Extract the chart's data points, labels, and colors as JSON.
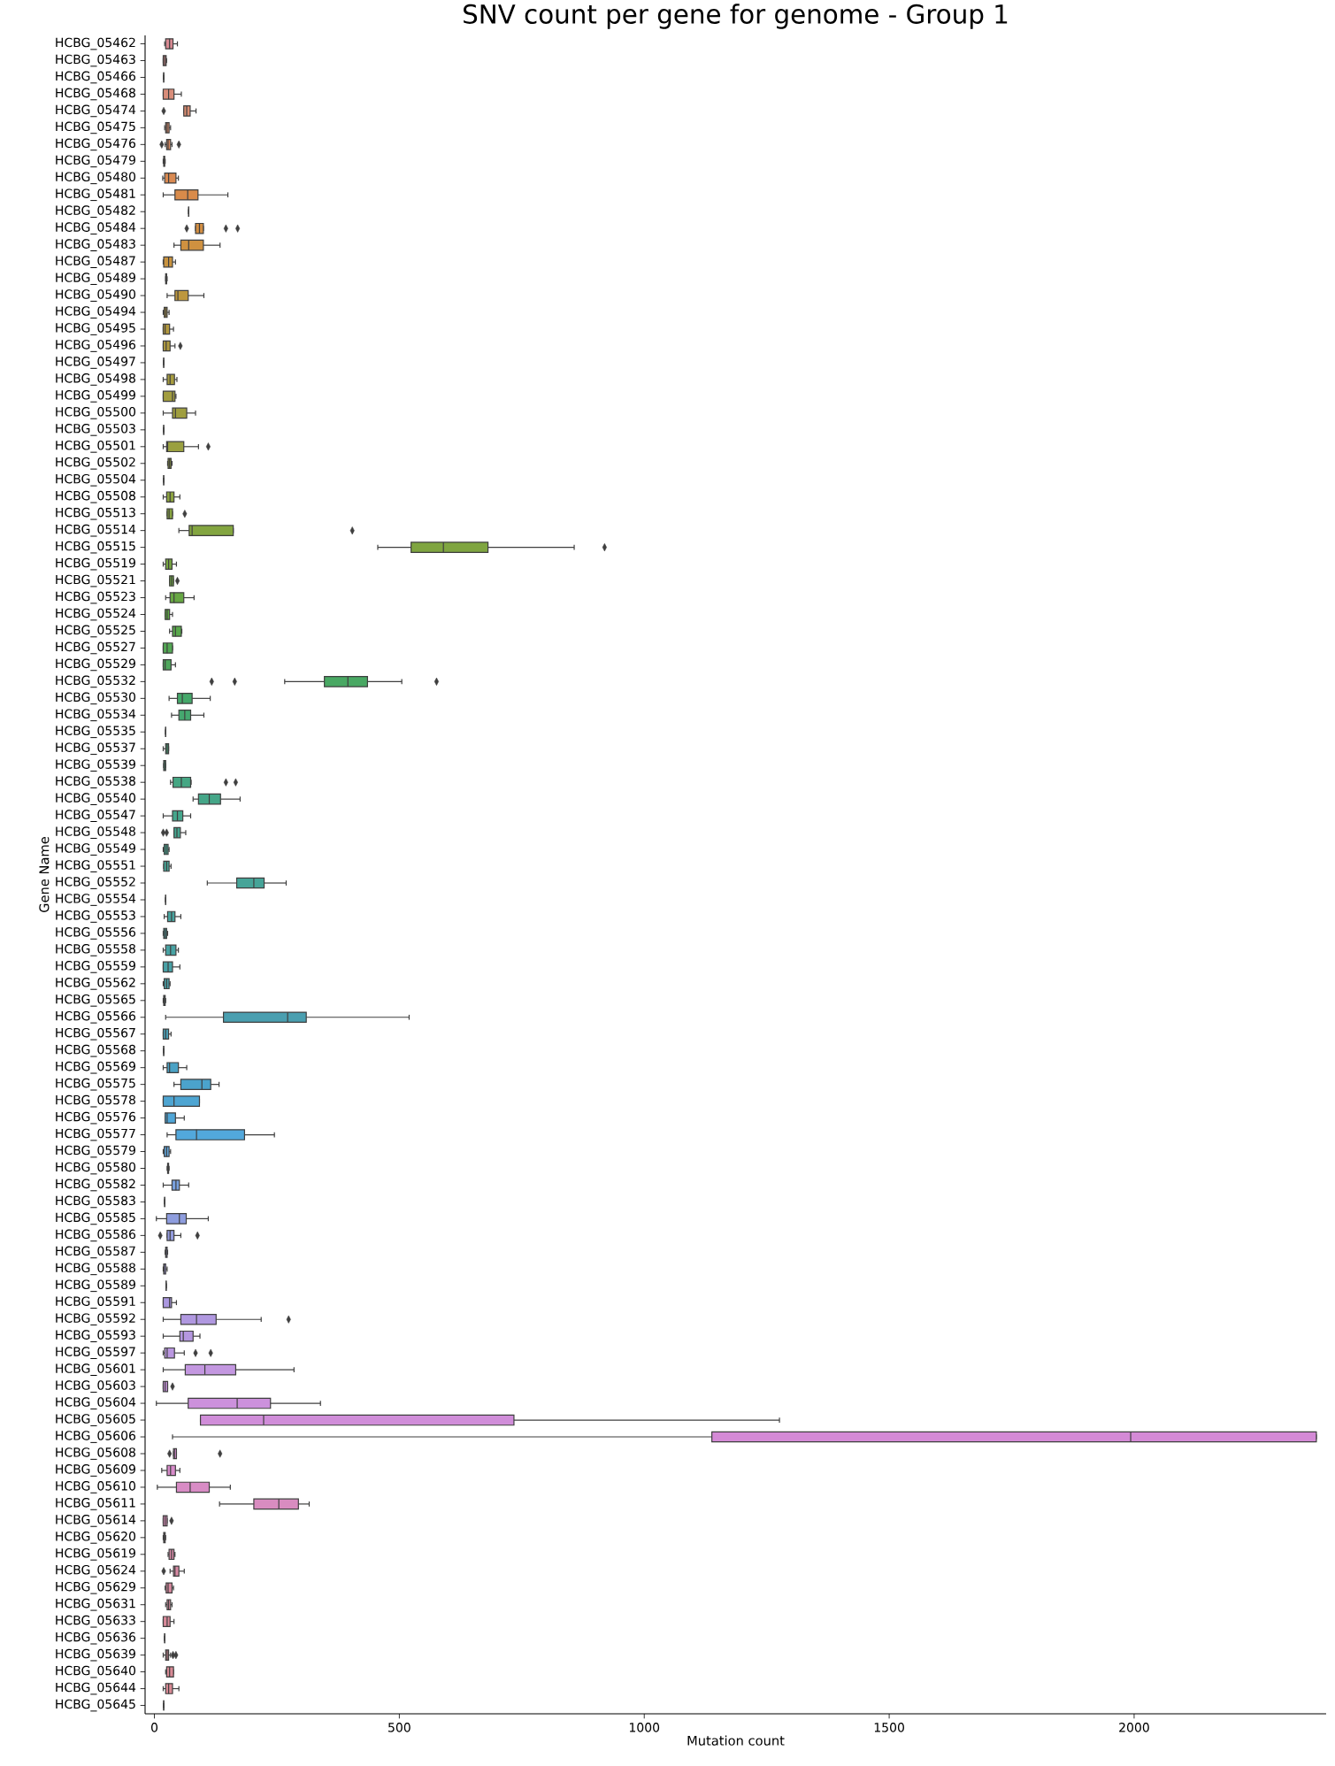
{
  "chart_data": {
    "type": "box",
    "orientation": "horizontal",
    "title": "SNV count per gene for genome - Group 1",
    "xlabel": "Mutation count",
    "ylabel": "Gene Name",
    "xlim": [
      -19,
      2392
    ],
    "xticks": [
      0,
      500,
      1000,
      1500,
      2000
    ],
    "categories": [
      "HCBG_05462",
      "HCBG_05463",
      "HCBG_05466",
      "HCBG_05468",
      "HCBG_05474",
      "HCBG_05475",
      "HCBG_05476",
      "HCBG_05479",
      "HCBG_05480",
      "HCBG_05481",
      "HCBG_05482",
      "HCBG_05484",
      "HCBG_05483",
      "HCBG_05487",
      "HCBG_05489",
      "HCBG_05490",
      "HCBG_05494",
      "HCBG_05495",
      "HCBG_05496",
      "HCBG_05497",
      "HCBG_05498",
      "HCBG_05499",
      "HCBG_05500",
      "HCBG_05503",
      "HCBG_05501",
      "HCBG_05502",
      "HCBG_05504",
      "HCBG_05508",
      "HCBG_05513",
      "HCBG_05514",
      "HCBG_05515",
      "HCBG_05519",
      "HCBG_05521",
      "HCBG_05523",
      "HCBG_05524",
      "HCBG_05525",
      "HCBG_05527",
      "HCBG_05529",
      "HCBG_05532",
      "HCBG_05530",
      "HCBG_05534",
      "HCBG_05535",
      "HCBG_05537",
      "HCBG_05539",
      "HCBG_05538",
      "HCBG_05540",
      "HCBG_05547",
      "HCBG_05548",
      "HCBG_05549",
      "HCBG_05551",
      "HCBG_05552",
      "HCBG_05554",
      "HCBG_05553",
      "HCBG_05556",
      "HCBG_05558",
      "HCBG_05559",
      "HCBG_05562",
      "HCBG_05565",
      "HCBG_05566",
      "HCBG_05567",
      "HCBG_05568",
      "HCBG_05569",
      "HCBG_05575",
      "HCBG_05578",
      "HCBG_05576",
      "HCBG_05577",
      "HCBG_05579",
      "HCBG_05580",
      "HCBG_05582",
      "HCBG_05583",
      "HCBG_05585",
      "HCBG_05586",
      "HCBG_05587",
      "HCBG_05588",
      "HCBG_05589",
      "HCBG_05591",
      "HCBG_05592",
      "HCBG_05593",
      "HCBG_05597",
      "HCBG_05601",
      "HCBG_05603",
      "HCBG_05604",
      "HCBG_05605",
      "HCBG_05606",
      "HCBG_05608",
      "HCBG_05609",
      "HCBG_05610",
      "HCBG_05611",
      "HCBG_05614",
      "HCBG_05620",
      "HCBG_05619",
      "HCBG_05624",
      "HCBG_05629",
      "HCBG_05631",
      "HCBG_05633",
      "HCBG_05636",
      "HCBG_05639",
      "HCBG_05640",
      "HCBG_05644",
      "HCBG_05645"
    ],
    "colors": [
      "#d98a93",
      "#d98b8a",
      "#3f3f3f",
      "#d98d7a",
      "#d98d72",
      "#d98c6a",
      "#d98b62",
      "#d98a5a",
      "#d98a52",
      "#d98b4a",
      "#3f3f3f",
      "#d38f43",
      "#cf9140",
      "#c9933e",
      "#c3953e",
      "#bd973e",
      "#b8983e",
      "#b3993e",
      "#b09a3e",
      "#3f3f3f",
      "#a69c3f",
      "#a29d3f",
      "#9f9e3f",
      "#3f3f3f",
      "#9aa040",
      "#95a140",
      "#3f3f3f",
      "#8ca340",
      "#87a440",
      "#83a540",
      "#7fa540",
      "#77a641",
      "#6fa742",
      "#67a743",
      "#5fa844",
      "#59a84c",
      "#53a854",
      "#4ea85c",
      "#49a863",
      "#45a86a",
      "#45a86f",
      "#3f3f3f",
      "#45a779",
      "#45a77e",
      "#45a683",
      "#45a688",
      "#45a68c",
      "#45a58f",
      "#45a591",
      "#46a495",
      "#46a498",
      "#3f3f3f",
      "#47a39e",
      "#47a2a0",
      "#47a2a3",
      "#48a1a6",
      "#48a1a9",
      "#49a0ac",
      "#4a9fb0",
      "#4aa0b7",
      "#3f3f3f",
      "#4ba2c5",
      "#4ba3cc",
      "#4ea5d2",
      "#50a6d7",
      "#52a8dc",
      "#5fa5dd",
      "#6ca3dd",
      "#79a1de",
      "#3f3f3f",
      "#8e9dde",
      "#949cde",
      "#9a9bdf",
      "#a09adf",
      "#3f3f3f",
      "#ab98e0",
      "#b098e0",
      "#b597e0",
      "#ba97e0",
      "#c397e0",
      "#c894de",
      "#cc91dc",
      "#d08dd9",
      "#d48ad6",
      "#d68bd0",
      "#d78bca",
      "#d88cc5",
      "#d98cc0",
      "#d98cb8",
      "#d98bb1",
      "#d98aa8",
      "#d98aa4",
      "#d98aa0",
      "#d98a9d",
      "#d98a9a",
      "#3f3f3f",
      "#d98a97",
      "#d98a96",
      "#d98a95",
      "#3f3f3f"
    ],
    "boxes": [
      {
        "low": 21,
        "q1": 23,
        "median": 31,
        "q3": 38,
        "high": 47
      },
      {
        "low": 18,
        "q1": 18,
        "median": 21,
        "q3": 24,
        "high": 25
      },
      {
        "low": 19,
        "q1": 19,
        "median": 19,
        "q3": 19,
        "high": 19
      },
      {
        "low": 18,
        "q1": 18,
        "median": 29,
        "q3": 40,
        "high": 55
      },
      {
        "low": 60,
        "q1": 60,
        "median": 66,
        "q3": 73,
        "high": 85,
        "outliers": [
          19
        ]
      },
      {
        "low": 21,
        "q1": 23,
        "median": 26,
        "q3": 30,
        "high": 33
      },
      {
        "low": 22,
        "q1": 25,
        "median": 28,
        "q3": 33,
        "high": 36,
        "outliers": [
          15,
          50
        ]
      },
      {
        "low": 18,
        "q1": 19,
        "median": 20,
        "q3": 21,
        "high": 22
      },
      {
        "low": 17,
        "q1": 21,
        "median": 29,
        "q3": 44,
        "high": 49
      },
      {
        "low": 18,
        "q1": 42,
        "median": 68,
        "q3": 89,
        "high": 150
      },
      {
        "low": 70,
        "q1": 70,
        "median": 70,
        "q3": 70,
        "high": 70
      },
      {
        "low": 84,
        "q1": 84,
        "median": 92,
        "q3": 100,
        "high": 100,
        "outliers": [
          66,
          146,
          170
        ]
      },
      {
        "low": 40,
        "q1": 54,
        "median": 70,
        "q3": 100,
        "high": 134
      },
      {
        "low": 18,
        "q1": 19,
        "median": 29,
        "q3": 37,
        "high": 43
      },
      {
        "low": 23,
        "q1": 23,
        "median": 24,
        "q3": 25,
        "high": 26
      },
      {
        "low": 26,
        "q1": 42,
        "median": 48,
        "q3": 69,
        "high": 101
      },
      {
        "low": 18,
        "q1": 20,
        "median": 23,
        "q3": 26,
        "high": 30
      },
      {
        "low": 18,
        "q1": 18,
        "median": 22,
        "q3": 31,
        "high": 39
      },
      {
        "low": 18,
        "q1": 18,
        "median": 24,
        "q3": 32,
        "high": 42,
        "outliers": [
          53
        ]
      },
      {
        "low": 19,
        "q1": 19,
        "median": 19,
        "q3": 19,
        "high": 19
      },
      {
        "low": 18,
        "q1": 26,
        "median": 32,
        "q3": 41,
        "high": 46
      },
      {
        "low": 18,
        "q1": 18,
        "median": 37,
        "q3": 42,
        "high": 44
      },
      {
        "low": 18,
        "q1": 37,
        "median": 43,
        "q3": 66,
        "high": 84
      },
      {
        "low": 19,
        "q1": 19,
        "median": 19,
        "q3": 19,
        "high": 19
      },
      {
        "low": 18,
        "q1": 25,
        "median": 27,
        "q3": 60,
        "high": 90,
        "outliers": [
          110
        ]
      },
      {
        "low": 27,
        "q1": 28,
        "median": 31,
        "q3": 34,
        "high": 36
      },
      {
        "low": 19,
        "q1": 19,
        "median": 19,
        "q3": 19,
        "high": 19
      },
      {
        "low": 18,
        "q1": 25,
        "median": 32,
        "q3": 40,
        "high": 52
      },
      {
        "low": 26,
        "q1": 26,
        "median": 30,
        "q3": 37,
        "high": 37,
        "outliers": [
          62
        ]
      },
      {
        "low": 50,
        "q1": 71,
        "median": 77,
        "q3": 161,
        "high": 161,
        "outliers": [
          404
        ]
      },
      {
        "low": 456,
        "q1": 524,
        "median": 590,
        "q3": 681,
        "high": 857,
        "outliers": [
          919
        ]
      },
      {
        "low": 18,
        "q1": 23,
        "median": 29,
        "q3": 36,
        "high": 45
      },
      {
        "low": 31,
        "q1": 31,
        "median": 35,
        "q3": 39,
        "high": 39,
        "outliers": [
          47
        ]
      },
      {
        "low": 23,
        "q1": 32,
        "median": 40,
        "q3": 60,
        "high": 81
      },
      {
        "low": 22,
        "q1": 22,
        "median": 26,
        "q3": 31,
        "high": 37
      },
      {
        "low": 31,
        "q1": 37,
        "median": 43,
        "q3": 55,
        "high": 56
      },
      {
        "low": 18,
        "q1": 18,
        "median": 26,
        "q3": 37,
        "high": 37
      },
      {
        "low": 18,
        "q1": 18,
        "median": 22,
        "q3": 34,
        "high": 43
      },
      {
        "low": 266,
        "q1": 347,
        "median": 395,
        "q3": 435,
        "high": 505,
        "outliers": [
          117,
          164,
          576
        ]
      },
      {
        "low": 30,
        "q1": 47,
        "median": 57,
        "q3": 77,
        "high": 114
      },
      {
        "low": 35,
        "q1": 50,
        "median": 62,
        "q3": 74,
        "high": 101
      },
      {
        "low": 23,
        "q1": 23,
        "median": 23,
        "q3": 23,
        "high": 23
      },
      {
        "low": 18,
        "q1": 23,
        "median": 26,
        "q3": 29,
        "high": 29
      },
      {
        "low": 19,
        "q1": 19,
        "median": 21,
        "q3": 23,
        "high": 23
      },
      {
        "low": 33,
        "q1": 38,
        "median": 55,
        "q3": 74,
        "high": 75,
        "outliers": [
          146,
          166
        ]
      },
      {
        "low": 79,
        "q1": 90,
        "median": 112,
        "q3": 135,
        "high": 175
      },
      {
        "low": 18,
        "q1": 37,
        "median": 47,
        "q3": 58,
        "high": 74
      },
      {
        "low": 40,
        "q1": 40,
        "median": 46,
        "q3": 53,
        "high": 64,
        "outliers": [
          18,
          25
        ]
      },
      {
        "low": 18,
        "q1": 20,
        "median": 24,
        "q3": 28,
        "high": 30
      },
      {
        "low": 19,
        "q1": 19,
        "median": 25,
        "q3": 30,
        "high": 34
      },
      {
        "low": 108,
        "q1": 168,
        "median": 203,
        "q3": 224,
        "high": 269
      },
      {
        "low": 23,
        "q1": 23,
        "median": 23,
        "q3": 23,
        "high": 23
      },
      {
        "low": 20,
        "q1": 27,
        "median": 35,
        "q3": 42,
        "high": 54
      },
      {
        "low": 18,
        "q1": 19,
        "median": 22,
        "q3": 25,
        "high": 27
      },
      {
        "low": 18,
        "q1": 23,
        "median": 33,
        "q3": 44,
        "high": 49
      },
      {
        "low": 18,
        "q1": 18,
        "median": 28,
        "q3": 37,
        "high": 52
      },
      {
        "low": 18,
        "q1": 20,
        "median": 25,
        "q3": 30,
        "high": 32
      },
      {
        "low": 18,
        "q1": 19,
        "median": 20,
        "q3": 22,
        "high": 23
      },
      {
        "low": 23,
        "q1": 141,
        "median": 272,
        "q3": 310,
        "high": 520
      },
      {
        "low": 18,
        "q1": 18,
        "median": 23,
        "q3": 29,
        "high": 34
      },
      {
        "low": 19,
        "q1": 19,
        "median": 19,
        "q3": 19,
        "high": 19
      },
      {
        "low": 18,
        "q1": 26,
        "median": 31,
        "q3": 49,
        "high": 66
      },
      {
        "low": 40,
        "q1": 54,
        "median": 97,
        "q3": 115,
        "high": 132
      },
      {
        "low": 18,
        "q1": 18,
        "median": 40,
        "q3": 92,
        "high": 92
      },
      {
        "low": 22,
        "q1": 22,
        "median": 26,
        "q3": 43,
        "high": 61
      },
      {
        "low": 26,
        "q1": 44,
        "median": 86,
        "q3": 184,
        "high": 245
      },
      {
        "low": 18,
        "q1": 20,
        "median": 25,
        "q3": 30,
        "high": 33
      },
      {
        "low": 26,
        "q1": 27,
        "median": 28,
        "q3": 29,
        "high": 30
      },
      {
        "low": 18,
        "q1": 36,
        "median": 44,
        "q3": 51,
        "high": 70
      },
      {
        "low": 21,
        "q1": 21,
        "median": 21,
        "q3": 21,
        "high": 21
      },
      {
        "low": 4,
        "q1": 25,
        "median": 51,
        "q3": 65,
        "high": 110
      },
      {
        "low": 26,
        "q1": 26,
        "median": 32,
        "q3": 40,
        "high": 54,
        "outliers": [
          12,
          88
        ]
      },
      {
        "low": 22,
        "q1": 23,
        "median": 24,
        "q3": 26,
        "high": 27
      },
      {
        "low": 18,
        "q1": 19,
        "median": 20,
        "q3": 23,
        "high": 26
      },
      {
        "low": 24,
        "q1": 24,
        "median": 24,
        "q3": 24,
        "high": 24
      },
      {
        "low": 18,
        "q1": 18,
        "median": 31,
        "q3": 35,
        "high": 45
      },
      {
        "low": 18,
        "q1": 54,
        "median": 86,
        "q3": 126,
        "high": 218,
        "outliers": [
          274
        ]
      },
      {
        "low": 18,
        "q1": 52,
        "median": 59,
        "q3": 79,
        "high": 93
      },
      {
        "low": 18,
        "q1": 21,
        "median": 26,
        "q3": 41,
        "high": 61,
        "outliers": [
          84,
          115
        ]
      },
      {
        "low": 18,
        "q1": 63,
        "median": 103,
        "q3": 166,
        "high": 285
      },
      {
        "low": 18,
        "q1": 18,
        "median": 22,
        "q3": 27,
        "high": 27,
        "outliers": [
          37
        ]
      },
      {
        "low": 4,
        "q1": 69,
        "median": 169,
        "q3": 237,
        "high": 339
      },
      {
        "low": 94,
        "q1": 94,
        "median": 223,
        "q3": 734,
        "high": 1276
      },
      {
        "low": 37,
        "q1": 1138,
        "median": 1993,
        "q3": 2372,
        "high": 2372
      },
      {
        "low": 39,
        "q1": 39,
        "median": 41,
        "q3": 45,
        "high": 45,
        "outliers": [
          31,
          134
        ]
      },
      {
        "low": 15,
        "q1": 26,
        "median": 33,
        "q3": 43,
        "high": 52
      },
      {
        "low": 6,
        "q1": 45,
        "median": 73,
        "q3": 112,
        "high": 155
      },
      {
        "low": 133,
        "q1": 203,
        "median": 254,
        "q3": 294,
        "high": 316
      },
      {
        "low": 18,
        "q1": 18,
        "median": 22,
        "q3": 26,
        "high": 26,
        "outliers": [
          35
        ]
      },
      {
        "low": 18,
        "q1": 19,
        "median": 20,
        "q3": 22,
        "high": 23
      },
      {
        "low": 28,
        "q1": 30,
        "median": 35,
        "q3": 40,
        "high": 42
      },
      {
        "low": 32,
        "q1": 39,
        "median": 42,
        "q3": 50,
        "high": 61,
        "outliers": [
          19
        ]
      },
      {
        "low": 22,
        "q1": 24,
        "median": 28,
        "q3": 36,
        "high": 39
      },
      {
        "low": 23,
        "q1": 26,
        "median": 29,
        "q3": 33,
        "high": 36
      },
      {
        "low": 18,
        "q1": 18,
        "median": 26,
        "q3": 32,
        "high": 40
      },
      {
        "low": 21,
        "q1": 21,
        "median": 21,
        "q3": 21,
        "high": 21
      },
      {
        "low": 18,
        "q1": 23,
        "median": 26,
        "q3": 29,
        "high": 33,
        "outliers": [
          38,
          44
        ]
      },
      {
        "low": 23,
        "q1": 25,
        "median": 31,
        "q3": 39,
        "high": 39
      },
      {
        "low": 18,
        "q1": 23,
        "median": 29,
        "q3": 37,
        "high": 50
      },
      {
        "low": 19,
        "q1": 19,
        "median": 19,
        "q3": 19,
        "high": 19
      }
    ]
  }
}
